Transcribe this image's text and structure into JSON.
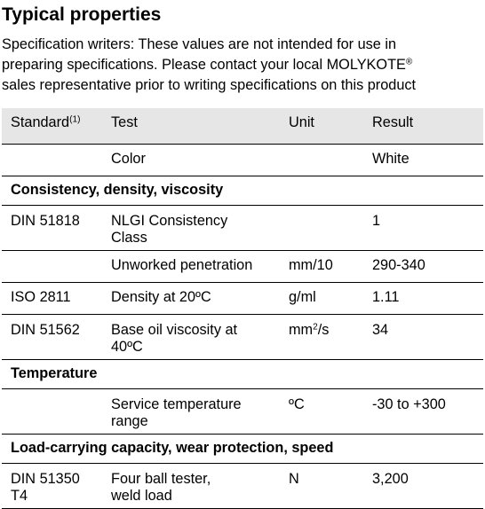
{
  "heading": "Typical properties",
  "intro": {
    "line1": "Specification writers: These values are not intended for use in",
    "line2_pre": "preparing specifications. Please contact your local MOLYKOTE",
    "line2_reg": "®",
    "line3": "sales representative prior to writing specifications on this product"
  },
  "table": {
    "headers": {
      "standard": "Standard",
      "standard_note": "(1)",
      "test": "Test",
      "unit": "Unit",
      "result": "Result"
    },
    "color_row": {
      "standard": "",
      "test": "Color",
      "unit": "",
      "result": "White"
    },
    "sections": [
      {
        "title": "Consistency, density, viscosity"
      },
      {
        "title": "Temperature"
      },
      {
        "title": "Load-carrying capacity, wear protection, speed"
      }
    ],
    "rows": {
      "nlgi": {
        "standard": "DIN 51818",
        "test_1": "NLGI Consistency",
        "test_2": "Class",
        "unit": "",
        "result": "1"
      },
      "penetration": {
        "standard": "",
        "test": "Unworked penetration",
        "unit": "mm/10",
        "result": "290-340"
      },
      "density": {
        "standard": "ISO 2811",
        "test": "Density at 20ºC",
        "unit": "g/ml",
        "result": "1.11"
      },
      "viscosity": {
        "standard": "DIN 51562",
        "test_1": "Base oil viscosity at",
        "test_2": "40ºC",
        "unit_base": "mm",
        "unit_exp": "2",
        "unit_rest": "/s",
        "result": "34"
      },
      "service_temp": {
        "standard": "",
        "test_1": "Service temperature",
        "test_2": "range",
        "unit": "ºC",
        "result": "-30 to +300"
      },
      "four_ball": {
        "standard_1": "DIN 51350",
        "standard_2": "T4",
        "test_1": "Four ball tester,",
        "test_2": "weld load",
        "unit": "N",
        "result": "3,200"
      }
    }
  }
}
